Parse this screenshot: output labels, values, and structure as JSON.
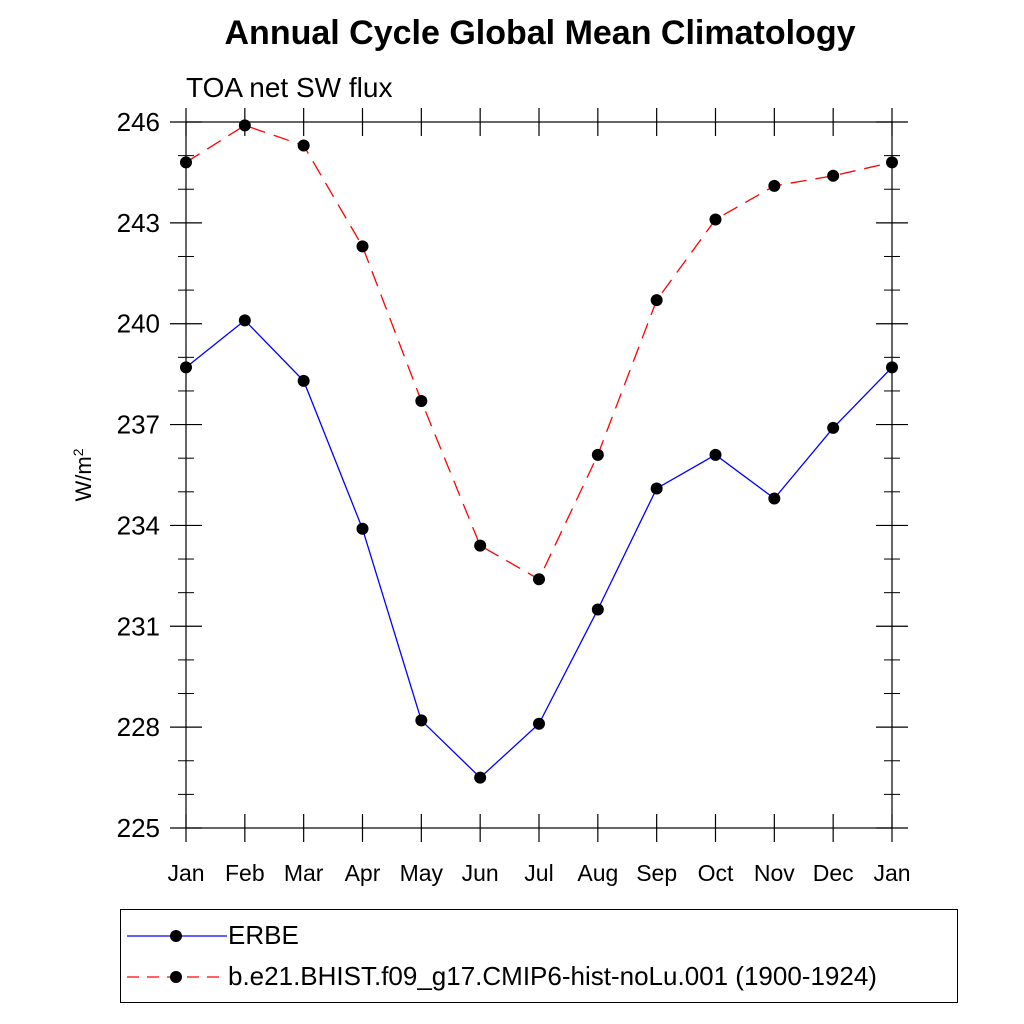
{
  "title": "Annual Cycle Global Mean Climatology",
  "subtitle": "TOA net SW flux",
  "chart_data": {
    "type": "line",
    "categories": [
      "Jan",
      "Feb",
      "Mar",
      "Apr",
      "May",
      "Jun",
      "Jul",
      "Aug",
      "Sep",
      "Oct",
      "Nov",
      "Dec",
      "Jan"
    ],
    "ylabel_base": "W/m",
    "ylabel_sup": "2",
    "ylim": [
      225,
      246
    ],
    "yticks": [
      225,
      228,
      231,
      234,
      237,
      240,
      243,
      246
    ],
    "yminor_step": 1,
    "grid": false,
    "legend": "bottom",
    "series": [
      {
        "name": "ERBE",
        "color": "#0000ff",
        "dash": "solid",
        "values": [
          238.7,
          240.1,
          238.3,
          233.9,
          228.2,
          226.5,
          228.1,
          231.5,
          235.1,
          236.1,
          234.8,
          236.9,
          238.7
        ]
      },
      {
        "name": "b.e21.BHIST.f09_g17.CMIP6-hist-noLu.001 (1900-1924)",
        "color": "#ff0000",
        "dash": "dashed",
        "values": [
          244.8,
          245.9,
          245.3,
          242.3,
          237.7,
          233.4,
          232.4,
          236.1,
          240.7,
          243.1,
          244.1,
          244.4,
          244.8
        ]
      }
    ]
  }
}
